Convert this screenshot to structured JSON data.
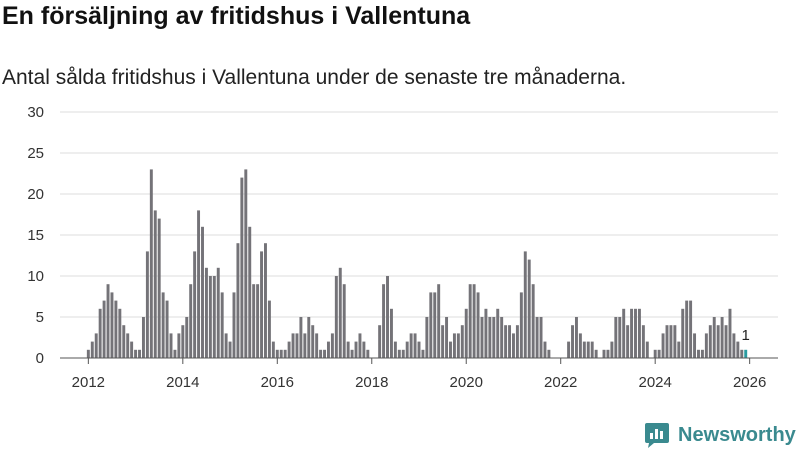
{
  "title": "En försäljning av fritidshus i Vallentuna",
  "subtitle": "Antal sålda fritidshus i Vallentuna under de senaste tre månaderna.",
  "brand": {
    "name": "Newsworthy",
    "icon": "newsworthy-logo-icon",
    "color": "#3a8a8f"
  },
  "chart_data": {
    "type": "bar",
    "title": "En försäljning av fritidshus i Vallentuna",
    "subtitle": "Antal sålda fritidshus i Vallentuna under de senaste tre månaderna.",
    "xlabel": "",
    "ylabel": "",
    "ylim": [
      0,
      30
    ],
    "xlim": [
      2011.4,
      2026.6
    ],
    "yticks": [
      0,
      5,
      10,
      15,
      20,
      25,
      30
    ],
    "xticks": [
      2012,
      2014,
      2016,
      2018,
      2020,
      2022,
      2024,
      2026
    ],
    "grid": true,
    "start": 2012,
    "step_months": 1,
    "bar_color": "#747378",
    "highlight_color": "#2a9ba0",
    "highlight_label": "1",
    "values": [
      1,
      2,
      3,
      6,
      7,
      9,
      8,
      7,
      6,
      4,
      3,
      2,
      1,
      1,
      5,
      13,
      23,
      18,
      17,
      8,
      7,
      3,
      1,
      3,
      4,
      5,
      9,
      13,
      18,
      16,
      11,
      10,
      10,
      11,
      8,
      3,
      2,
      8,
      14,
      22,
      23,
      16,
      9,
      9,
      13,
      14,
      7,
      2,
      1,
      1,
      1,
      2,
      3,
      3,
      5,
      3,
      5,
      4,
      3,
      1,
      1,
      2,
      3,
      10,
      11,
      9,
      2,
      1,
      2,
      3,
      2,
      1,
      0,
      0,
      4,
      9,
      10,
      6,
      2,
      1,
      1,
      2,
      3,
      3,
      2,
      1,
      5,
      8,
      8,
      9,
      4,
      5,
      2,
      3,
      3,
      4,
      6,
      9,
      9,
      8,
      5,
      6,
      5,
      5,
      6,
      5,
      4,
      4,
      3,
      4,
      8,
      13,
      12,
      9,
      5,
      5,
      2,
      1,
      0,
      0,
      0,
      0,
      2,
      4,
      5,
      3,
      2,
      2,
      2,
      1,
      0,
      1,
      1,
      2,
      5,
      5,
      6,
      4,
      6,
      6,
      6,
      4,
      2,
      0,
      1,
      1,
      3,
      4,
      4,
      4,
      2,
      6,
      7,
      7,
      3,
      1,
      1,
      3,
      4,
      5,
      4,
      5,
      4,
      6,
      3,
      2,
      1,
      1
    ]
  }
}
